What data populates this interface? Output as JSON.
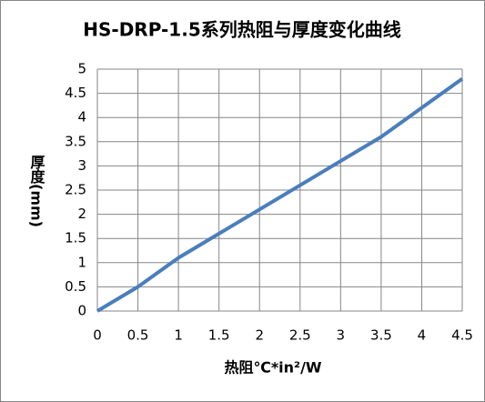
{
  "chart_data": {
    "type": "line",
    "title": "HS-DRP-1.5系列热阻与厚度变化曲线",
    "x_label": "热阻℃*in²/W",
    "y_label": "厚度(mm)",
    "x": [
      0,
      0.5,
      1,
      1.5,
      2,
      2.5,
      3,
      3.5,
      4,
      4.5
    ],
    "series": [
      {
        "name": "厚度",
        "color": "#4a7ebb",
        "values": [
          0,
          0.5,
          1.1,
          1.6,
          2.1,
          2.6,
          3.1,
          3.6,
          4.2,
          4.8
        ]
      }
    ],
    "xlim": [
      0,
      4.5
    ],
    "xticks": [
      0,
      0.5,
      1,
      1.5,
      2,
      2.5,
      3,
      3.5,
      4,
      4.5
    ],
    "ylim": [
      0,
      5
    ],
    "yticks": [
      0,
      0.5,
      1,
      1.5,
      2,
      2.5,
      3,
      3.5,
      4,
      4.5,
      5
    ],
    "grid": true,
    "legend": false
  }
}
